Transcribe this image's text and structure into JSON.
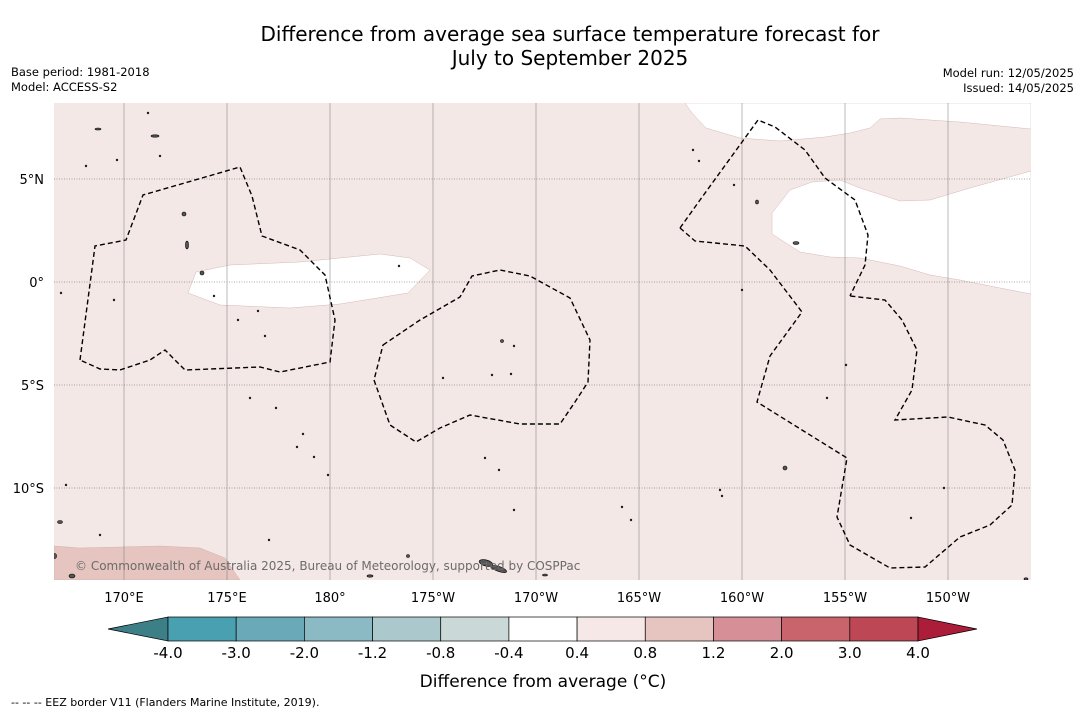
{
  "title_line1": "Difference from average sea surface temperature forecast for",
  "title_line2": "July to September 2025",
  "base_period": "Base period: 1981-2018",
  "model": "Model: ACCESS-S2",
  "model_run": "Model run: 12/05/2025",
  "issued": "Issued: 14/05/2025",
  "latitude_labels": [
    "5°N",
    "0°",
    "5°S",
    "10°S"
  ],
  "longitude_labels": [
    "170°E",
    "175°E",
    "180°",
    "175°W",
    "170°W",
    "165°W",
    "160°W",
    "155°W",
    "150°W"
  ],
  "copyright": "© Commonwealth of Australia 2025, Bureau of Meteorology, supported by COSPPac",
  "colorbar": {
    "title": "Difference from average (°C)",
    "tick_labels": [
      "-4.0",
      "-3.0",
      "-2.0",
      "-1.2",
      "-0.8",
      "-0.4",
      "0.4",
      "0.8",
      "1.2",
      "2.0",
      "3.0",
      "4.0"
    ],
    "colors": {
      "below_min": "#3d7f86",
      "bins": [
        "#49a0b0",
        "#6aaab8",
        "#8bbac4",
        "#abc9cd",
        "#cbd8d8",
        "#ffffff",
        "#f5e8e6",
        "#e6c5c0",
        "#d68f96",
        "#c9646c",
        "#bd4754"
      ],
      "above_max": "#ac1d39"
    }
  },
  "map_colors": {
    "background_anomaly": "#f4e8e6",
    "warmer_anomaly": "#e6c5c0",
    "near_average": "#ffffff",
    "land": "#555555"
  },
  "footnote": "--  --  -- EEZ border V11 (Flanders Marine Institute, 2019)."
}
